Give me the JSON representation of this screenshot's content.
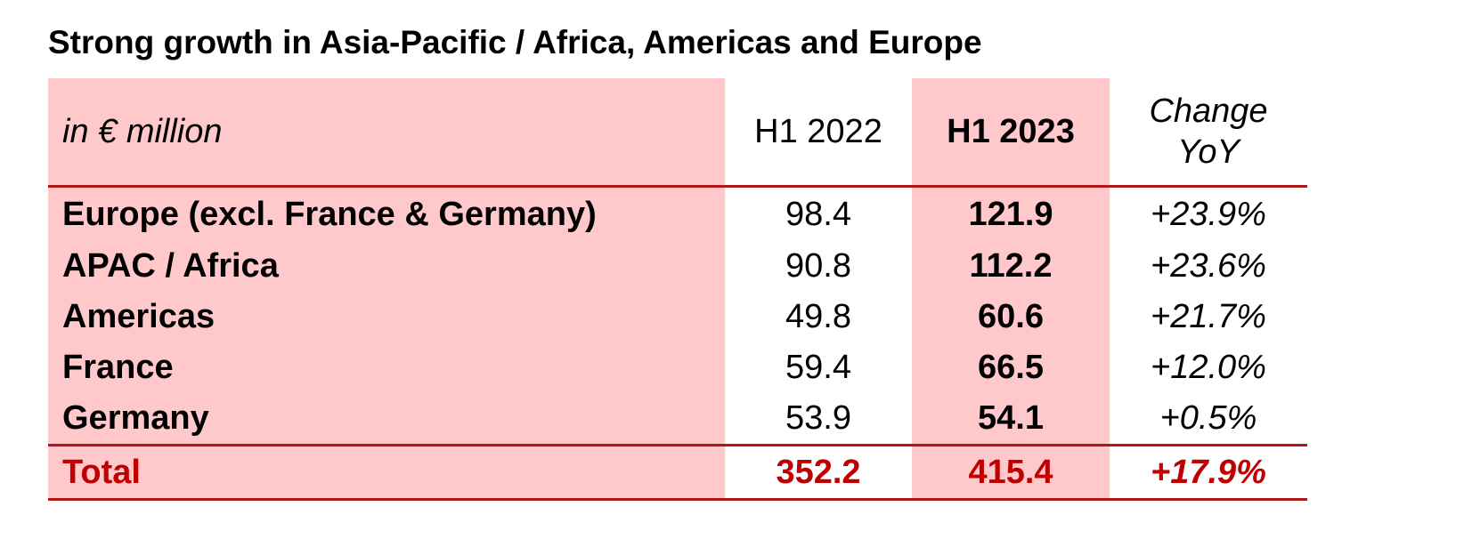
{
  "title": "Strong growth in Asia-Pacific / Africa, Americas and Europe",
  "colors": {
    "highlight_fill": "#ffc9cc",
    "rule": "#b01717",
    "total_text": "#c00000"
  },
  "chart_data": {
    "type": "table",
    "title": "Strong growth in Asia-Pacific / Africa, Americas and Europe",
    "unit": "in € million",
    "columns": [
      "H1 2022",
      "H1 2023",
      "Change YoY"
    ],
    "header": {
      "label": "in € million",
      "h1_2022": "H1 2022",
      "h1_2023": "H1 2023",
      "change_line1": "Change",
      "change_line2": "YoY"
    },
    "rows": [
      {
        "label": "Europe (excl. France & Germany)",
        "h1_2022": "98.4",
        "h1_2023": "121.9",
        "change": "+23.9%"
      },
      {
        "label": "APAC / Africa",
        "h1_2022": "90.8",
        "h1_2023": "112.2",
        "change": "+23.6%"
      },
      {
        "label": "Americas",
        "h1_2022": "49.8",
        "h1_2023": "60.6",
        "change": "+21.7%"
      },
      {
        "label": "France",
        "h1_2022": "59.4",
        "h1_2023": "66.5",
        "change": "+12.0%"
      },
      {
        "label": "Germany",
        "h1_2022": "53.9",
        "h1_2023": "54.1",
        "change": "+0.5%"
      }
    ],
    "total": {
      "label": "Total",
      "h1_2022": "352.2",
      "h1_2023": "415.4",
      "change": "+17.9%"
    }
  }
}
